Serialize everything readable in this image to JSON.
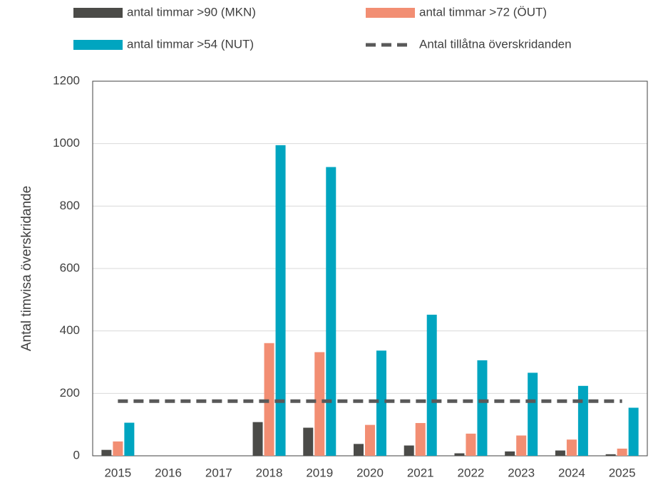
{
  "chart_data": {
    "type": "bar",
    "ylabel": "Antal timvisa överskridande",
    "categories": [
      "2015",
      "2016",
      "2017",
      "2018",
      "2019",
      "2020",
      "2021",
      "2022",
      "2023",
      "2024",
      "2025"
    ],
    "series": [
      {
        "name": "antal timmar >90 (MKN)",
        "color": "#4b4b48",
        "values": [
          19,
          0,
          0,
          108,
          90,
          38,
          33,
          8,
          14,
          17,
          5
        ]
      },
      {
        "name": "antal  timmar >72 (ÖUT)",
        "color": "#f28e73",
        "values": [
          46,
          0,
          0,
          361,
          332,
          99,
          105,
          71,
          65,
          52,
          23
        ]
      },
      {
        "name": "antal timmar >54 (NUT)",
        "color": "#00a5c0",
        "values": [
          106,
          0,
          0,
          995,
          925,
          337,
          452,
          306,
          266,
          224,
          154
        ]
      },
      {
        "name": "Antal tillåtna överskridanden",
        "color": "#595959",
        "type": "line",
        "dash": true,
        "values": [
          175,
          175,
          175,
          175,
          175,
          175,
          175,
          175,
          175,
          175,
          175
        ]
      }
    ],
    "ylim": [
      0,
      1200
    ],
    "yticks": [
      0,
      200,
      400,
      600,
      800,
      1000,
      1200
    ],
    "grid": true
  }
}
